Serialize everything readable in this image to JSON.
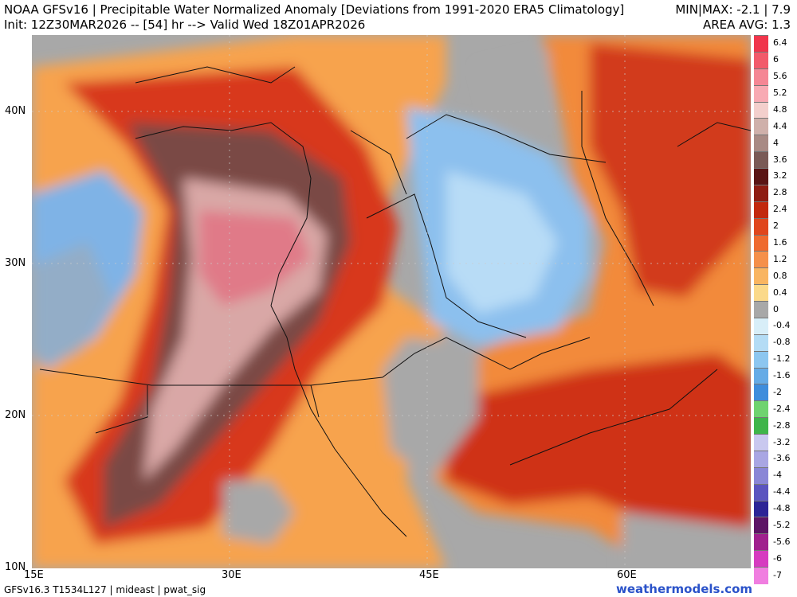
{
  "header": {
    "title_line1": "NOAA GFSv16 |  Precipitable Water Normalized Anomaly [Deviations from 1991-2020 ERA5 Climatology]",
    "title_line2": "Init: 12Z30MAR2026 -- [54] hr --> Valid Wed 18Z01APR2026",
    "stats_line1": "MIN|MAX: -2.1 | 7.9",
    "stats_line2": "AREA AVG: 1.3"
  },
  "stats": {
    "min": -2.1,
    "max": 7.9,
    "area_avg": 1.3
  },
  "axes": {
    "lat_labels": [
      "40N",
      "30N",
      "20N",
      "10N"
    ],
    "lon_labels": [
      "15E",
      "30E",
      "45E",
      "60E"
    ]
  },
  "colorbar": {
    "labels": [
      "6.4",
      "6",
      "5.6",
      "5.2",
      "4.8",
      "4.4",
      "4",
      "3.6",
      "3.2",
      "2.8",
      "2.4",
      "2",
      "1.6",
      "1.2",
      "0.8",
      "0.4",
      "0",
      "-0.4",
      "-0.8",
      "-1.2",
      "-1.6",
      "-2",
      "-2.4",
      "-2.8",
      "-3.2",
      "-3.6",
      "-4",
      "-4.4",
      "-4.8",
      "-5.2",
      "-5.6",
      "-6",
      "-7"
    ],
    "colors": [
      "#f0354b",
      "#f25a6a",
      "#f58694",
      "#f8aab3",
      "#f3cfcc",
      "#cfb0aa",
      "#a88a84",
      "#7a5a56",
      "#5a1414",
      "#8e1c12",
      "#c2290e",
      "#e0461c",
      "#ef6a2e",
      "#f5904a",
      "#f9b561",
      "#fbd98a",
      "#a8a8a8",
      "#d8eef8",
      "#b4dcf5",
      "#8cc6f0",
      "#66abe6",
      "#3f8ddc",
      "#6fd36f",
      "#3fb54a",
      "#c9c8ef",
      "#a9a6e3",
      "#8a86d6",
      "#5b54bf",
      "#2d2496",
      "#5e1466",
      "#a0208e",
      "#d63bc0",
      "#f07ee0"
    ]
  },
  "footer": {
    "left": "GFSv16.3 T1534L127 | mideast | pwat_sig",
    "right": "weathermodels.com"
  }
}
